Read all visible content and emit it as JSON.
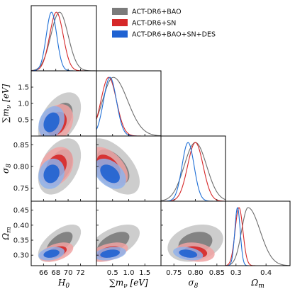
{
  "chart_data": {
    "type": "corner",
    "params": [
      {
        "id": "H0",
        "label_main": "H",
        "label_sub": "0",
        "range": [
          64.0,
          74.6
        ],
        "ticks": [
          66,
          68,
          70,
          72
        ]
      },
      {
        "id": "mnu",
        "label_main": "∑m",
        "label_sub": "ν",
        "label_unit": " [eV]",
        "range": [
          0.0,
          2.0
        ],
        "ticks": [
          0.5,
          1.0,
          1.5
        ]
      },
      {
        "id": "sigma8",
        "label_main": "σ",
        "label_sub": "8",
        "range": [
          0.72,
          0.87
        ],
        "ticks": [
          0.75,
          0.8,
          0.85
        ]
      },
      {
        "id": "omegam",
        "label_main": "Ω",
        "label_sub": "m",
        "range": [
          0.265,
          0.48
        ],
        "ticks": [
          0.3,
          0.35,
          0.4,
          0.45
        ]
      }
    ],
    "x_tick_labels": {
      "H0": [
        "66",
        "68",
        "70",
        "72"
      ],
      "mnu": [
        "0.5",
        "1.0",
        "1.5"
      ],
      "sigma8": [
        "0.75",
        "0.80",
        "0.85"
      ],
      "omegam": [
        "0.3",
        "0.4"
      ]
    },
    "x_ticks": {
      "omegam": [
        0.3,
        0.4
      ]
    },
    "y_tick_labels": {
      "mnu": [
        "0.5",
        "1.0",
        "1.5"
      ],
      "sigma8": [
        "0.75",
        "0.80",
        "0.85"
      ],
      "omegam": [
        "0.30",
        "0.35",
        "0.40",
        "0.45"
      ]
    },
    "legend": {
      "placement": "top-right",
      "entries": [
        "ACT-DR6+BAO",
        "ACT-DR6+SN",
        "ACT-DR6+BAO+SN+DES"
      ]
    },
    "series": [
      {
        "name": "ACT-DR6+BAO",
        "line_color": "#6e6e6e",
        "fill_inner": "#7b7b7b",
        "fill_outer": "#c4c4c4",
        "mean": {
          "H0": 68.6,
          "mnu": 0.52,
          "sigma8": 0.8,
          "omegam": 0.34
        },
        "sd": {
          "H0": 1.4,
          "mnu": 0.33,
          "sigma8": 0.026,
          "omegam": 0.025
        },
        "marginal_shape": {
          "mnu": "decay",
          "omegam": "skew"
        }
      },
      {
        "name": "ACT-DR6+SN",
        "line_color": "#d62728",
        "fill_inner": "#d62728",
        "fill_outer": "#f0a3a3",
        "mean": {
          "H0": 68.1,
          "mnu": 0.38,
          "sigma8": 0.8,
          "omegam": 0.31
        },
        "sd": {
          "H0": 1.1,
          "mnu": 0.24,
          "sigma8": 0.018,
          "omegam": 0.013
        }
      },
      {
        "name": "ACT-DR6+BAO+SN+DES",
        "line_color": "#1f6fd6",
        "fill_inner": "#1f62d2",
        "fill_outer": "#8fb2ea",
        "mean": {
          "H0": 67.3,
          "mnu": 0.42,
          "sigma8": 0.783,
          "omegam": 0.305
        },
        "sd": {
          "H0": 0.85,
          "mnu": 0.2,
          "sigma8": 0.014,
          "omegam": 0.009
        }
      }
    ],
    "correlations": {
      "H0|mnu": [
        0.45,
        0.3,
        0.25
      ],
      "H0|sigma8": [
        0.4,
        0.25,
        0.15
      ],
      "mnu|sigma8": [
        -0.55,
        -0.5,
        -0.4
      ],
      "H0|omegam": [
        0.6,
        0.45,
        0.3
      ],
      "mnu|omegam": [
        0.55,
        0.45,
        0.3
      ],
      "sigma8|omegam": [
        0.25,
        -0.2,
        -0.3
      ]
    }
  }
}
